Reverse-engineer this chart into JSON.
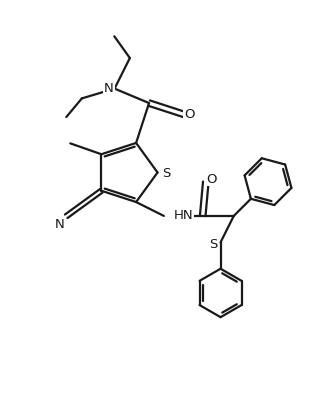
{
  "background": "#ffffff",
  "line_color": "#1a1a1a",
  "line_width": 1.6,
  "font_size": 9.5,
  "figsize": [
    3.12,
    4.06
  ],
  "dpi": 100,
  "xlim": [
    0,
    10
  ],
  "ylim": [
    0,
    13
  ]
}
